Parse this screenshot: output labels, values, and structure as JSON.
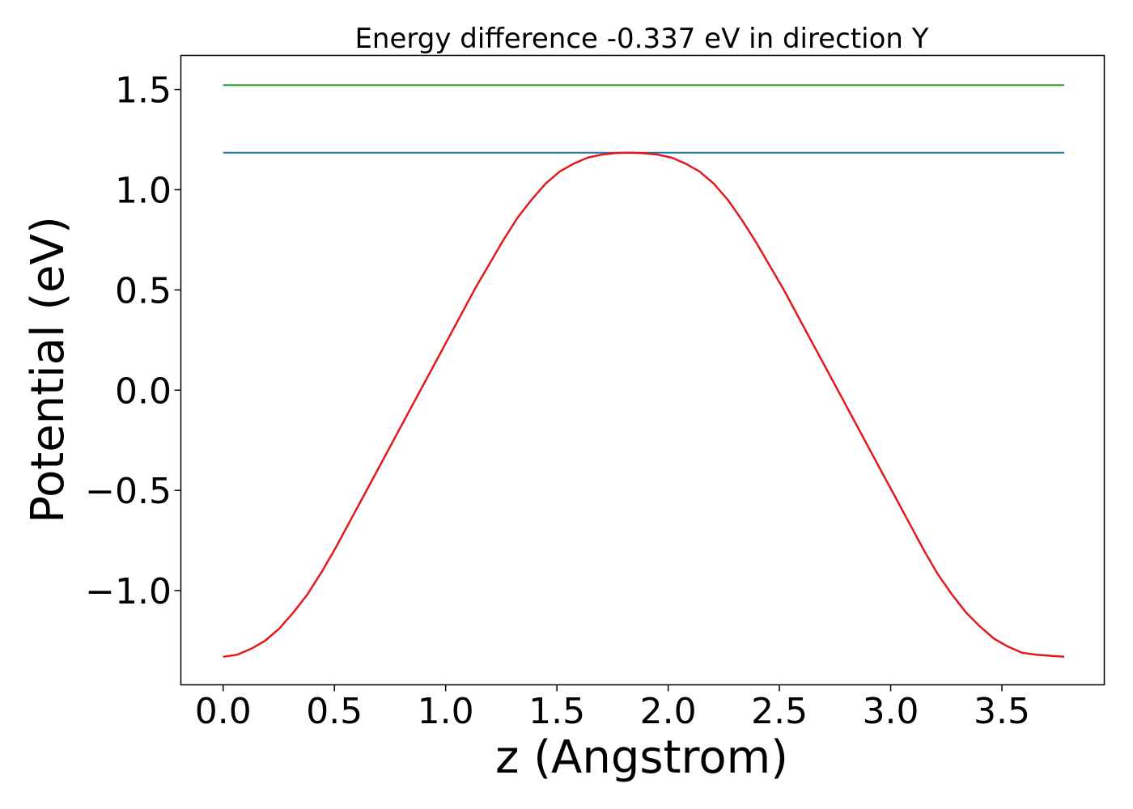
{
  "chart_data": {
    "type": "line",
    "title": "Energy difference -0.337 eV in direction Y",
    "xlabel": "z (Angstrom)",
    "ylabel": "Potential (eV)",
    "xlim": [
      -0.19,
      3.96
    ],
    "ylim": [
      -1.47,
      1.67
    ],
    "x_ticks": [
      0.0,
      0.5,
      1.0,
      1.5,
      2.0,
      2.5,
      3.0,
      3.5
    ],
    "x_tick_labels": [
      "0.0",
      "0.5",
      "1.0",
      "1.5",
      "2.0",
      "2.5",
      "3.0",
      "3.5"
    ],
    "y_ticks": [
      -1.0,
      -0.5,
      0.0,
      0.5,
      1.0,
      1.5
    ],
    "y_tick_labels": [
      "−1.0",
      "−0.5",
      "0.0",
      "0.5",
      "1.0",
      "1.5"
    ],
    "grid": false,
    "legend": "none",
    "series": [
      {
        "color": "#2ca02c",
        "x": [
          0.0,
          3.78
        ],
        "y": [
          1.522,
          1.522
        ]
      },
      {
        "color": "#1f77b4",
        "x": [
          0.0,
          3.78
        ],
        "y": [
          1.185,
          1.185
        ]
      },
      {
        "color": "#e31a1c",
        "x": [
          0.0,
          0.063,
          0.126,
          0.189,
          0.252,
          0.315,
          0.378,
          0.441,
          0.504,
          0.567,
          0.63,
          0.693,
          0.756,
          0.819,
          0.882,
          0.945,
          1.008,
          1.071,
          1.134,
          1.197,
          1.26,
          1.323,
          1.386,
          1.449,
          1.512,
          1.575,
          1.638,
          1.701,
          1.764,
          1.827,
          1.89,
          1.953,
          2.016,
          2.079,
          2.142,
          2.205,
          2.268,
          2.331,
          2.394,
          2.457,
          2.52,
          2.583,
          2.646,
          2.709,
          2.772,
          2.835,
          2.898,
          2.961,
          3.024,
          3.087,
          3.15,
          3.213,
          3.276,
          3.339,
          3.402,
          3.465,
          3.528,
          3.591,
          3.654,
          3.717,
          3.78
        ],
        "y": [
          -1.33,
          -1.32,
          -1.29,
          -1.25,
          -1.19,
          -1.11,
          -1.02,
          -0.91,
          -0.79,
          -0.66,
          -0.53,
          -0.4,
          -0.27,
          -0.14,
          -0.01,
          0.12,
          0.25,
          0.38,
          0.51,
          0.63,
          0.75,
          0.86,
          0.95,
          1.03,
          1.09,
          1.13,
          1.16,
          1.175,
          1.183,
          1.185,
          1.182,
          1.175,
          1.16,
          1.13,
          1.09,
          1.03,
          0.95,
          0.85,
          0.74,
          0.62,
          0.5,
          0.37,
          0.24,
          0.11,
          -0.02,
          -0.15,
          -0.28,
          -0.41,
          -0.54,
          -0.67,
          -0.8,
          -0.92,
          -1.02,
          -1.11,
          -1.18,
          -1.24,
          -1.28,
          -1.31,
          -1.32,
          -1.325,
          -1.33
        ]
      }
    ]
  }
}
